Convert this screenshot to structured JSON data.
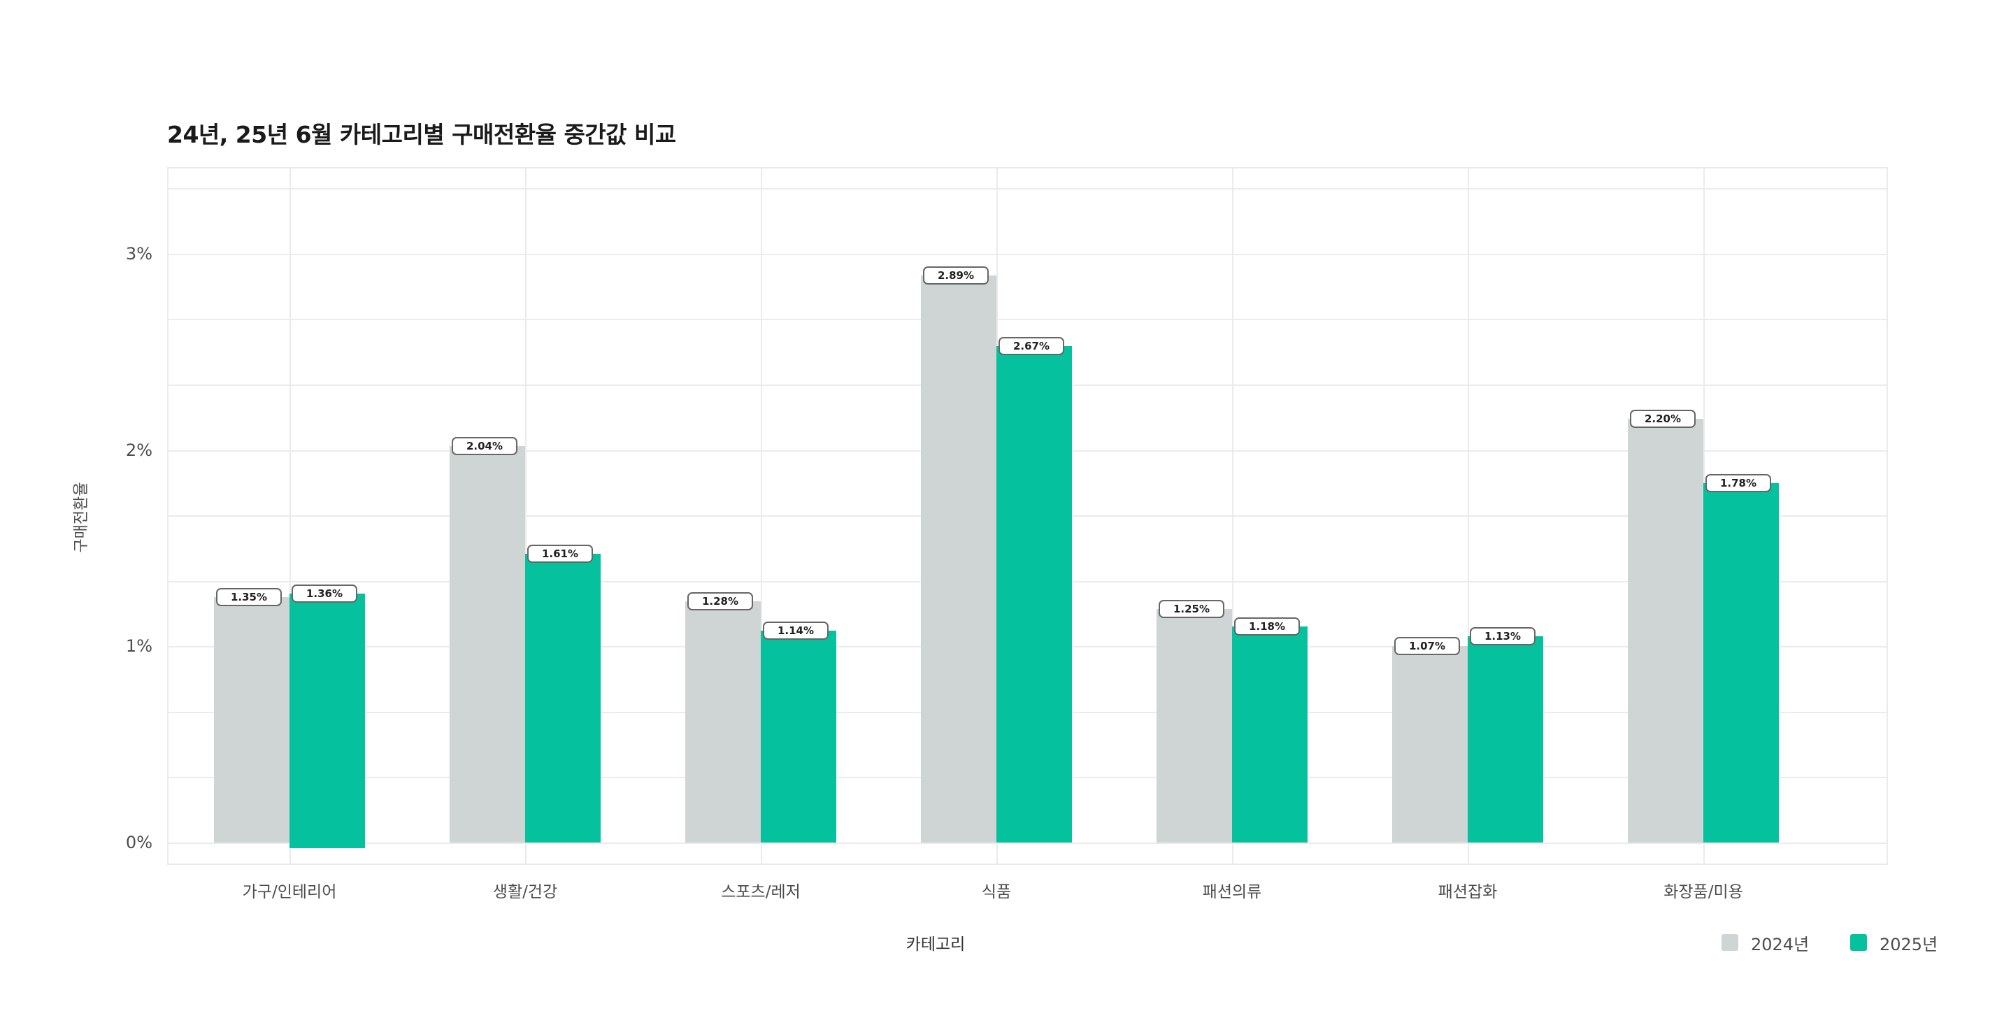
{
  "title": "24년, 25년 6월 카테고리별 구매전환율 중간값 비교",
  "axes": {
    "x_title": "카테고리",
    "y_title": "구매전환율",
    "y_ticks": [
      "0%",
      "1%",
      "2%",
      "3%"
    ]
  },
  "legend": [
    {
      "label": "2024년",
      "color": "#cfd4d4"
    },
    {
      "label": "2025년",
      "color": "#06c19e"
    }
  ],
  "chart_data": {
    "type": "bar",
    "title": "24년, 25년 6월 카테고리별 구매전환율 중간값 비교",
    "xlabel": "카테고리",
    "ylabel": "구매전환율",
    "categories": [
      "가구/인테리어",
      "생활/건강",
      "스포츠/레저",
      "식품",
      "패션의류",
      "패션잡화",
      "화장품/미용"
    ],
    "series": [
      {
        "name": "2024년",
        "color": "#cfd4d4",
        "values": [
          1.35,
          2.04,
          1.28,
          2.89,
          1.25,
          1.07,
          2.2
        ],
        "labels": [
          "1.35%",
          "2.04%",
          "1.28%",
          "2.89%",
          "1.25%",
          "1.07%",
          "2.20%"
        ],
        "bar_heights_pct": [
          1.25,
          2.02,
          1.23,
          2.89,
          1.19,
          1.0,
          2.16
        ]
      },
      {
        "name": "2025년",
        "color": "#06c19e",
        "values": [
          1.36,
          1.61,
          1.14,
          2.67,
          1.18,
          1.13,
          1.78
        ],
        "labels": [
          "1.36%",
          "1.61%",
          "1.14%",
          "2.67%",
          "1.18%",
          "1.13%",
          "1.78%"
        ],
        "bar_heights_pct": [
          1.27,
          1.47,
          1.08,
          2.53,
          1.1,
          1.05,
          1.83
        ]
      }
    ],
    "y_ticks": [
      0,
      1,
      2,
      3
    ],
    "y_tick_labels": [
      "0%",
      "1%",
      "2%",
      "3%"
    ],
    "ylim": [
      -0.11,
      3.45
    ],
    "grid": true,
    "legend_position": "bottom-right"
  }
}
